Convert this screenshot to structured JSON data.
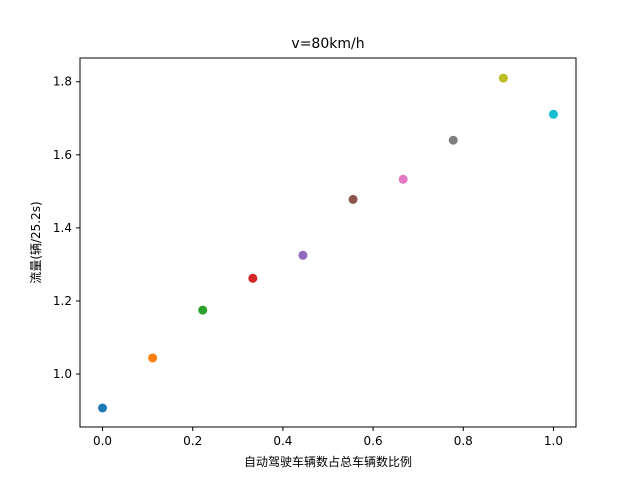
{
  "chart_data": {
    "type": "scatter",
    "title": "v=80km/h",
    "xlabel": "自动驾驶车辆数占总车辆数比例",
    "ylabel": "流量(辆/25.2s)",
    "xlim": [
      -0.05,
      1.05
    ],
    "ylim": [
      0.855,
      1.865
    ],
    "xticks": [
      0.0,
      0.2,
      0.4,
      0.6,
      0.8,
      1.0
    ],
    "xtick_labels": [
      "0.0",
      "0.2",
      "0.4",
      "0.6",
      "0.8",
      "1.0"
    ],
    "yticks": [
      1.0,
      1.2,
      1.4,
      1.6,
      1.8
    ],
    "ytick_labels": [
      "1.0",
      "1.2",
      "1.4",
      "1.6",
      "1.8"
    ],
    "grid": false,
    "points": [
      {
        "x": 0.0,
        "y": 0.907,
        "color": "#1f77b4"
      },
      {
        "x": 0.1111,
        "y": 1.044,
        "color": "#ff7f0e"
      },
      {
        "x": 0.2222,
        "y": 1.175,
        "color": "#2ca02c"
      },
      {
        "x": 0.3333,
        "y": 1.262,
        "color": "#d62728"
      },
      {
        "x": 0.4444,
        "y": 1.325,
        "color": "#9467bd"
      },
      {
        "x": 0.5556,
        "y": 1.478,
        "color": "#8c564b"
      },
      {
        "x": 0.6667,
        "y": 1.533,
        "color": "#e377c2"
      },
      {
        "x": 0.7778,
        "y": 1.64,
        "color": "#7f7f7f"
      },
      {
        "x": 0.8889,
        "y": 1.81,
        "color": "#bcbd22"
      },
      {
        "x": 1.0,
        "y": 1.711,
        "color": "#17becf"
      }
    ]
  }
}
